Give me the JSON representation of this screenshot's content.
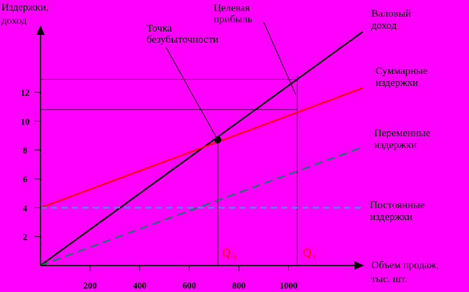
{
  "colors": {
    "background": "#ff00ff",
    "revenue": "#000000",
    "total_costs": "#ff0000",
    "variable_costs": "#008060",
    "fixed_costs": "#2aa4d8",
    "q_labels": "#ff0000"
  },
  "chart_data": {
    "type": "line",
    "title": "",
    "xlabel": [
      "Объем продаж,",
      "тыс. шт."
    ],
    "ylabel": [
      "Издержки,",
      "доход"
    ],
    "xlim": [
      0,
      1300
    ],
    "ylim": [
      0,
      16.7
    ],
    "x_ticks": [
      "200",
      "400",
      "600",
      "800",
      "1000"
    ],
    "x_tick_values": [
      200,
      400,
      600,
      800,
      1000
    ],
    "y_ticks": [
      "2",
      "4",
      "6",
      "8",
      "10",
      "12"
    ],
    "y_tick_values": [
      2,
      4,
      6,
      8,
      10,
      12
    ],
    "grid": false,
    "series": [
      {
        "name": [
          "Валовый",
          "доход"
        ],
        "style": "solid",
        "color_key": "revenue",
        "x": [
          0,
          1300
        ],
        "y": [
          0,
          16.2
        ]
      },
      {
        "name": [
          "Суммарные",
          "издержки"
        ],
        "style": "solid",
        "color_key": "total_costs",
        "x": [
          0,
          1300
        ],
        "y": [
          4,
          12.3
        ]
      },
      {
        "name": [
          "Переменные",
          "издержки"
        ],
        "style": "dashed",
        "color_key": "variable_costs",
        "x": [
          0,
          1300
        ],
        "y": [
          0,
          8.2
        ]
      },
      {
        "name": [
          "Постоянные",
          "издержки"
        ],
        "style": "dashed",
        "color_key": "fixed_costs",
        "x": [
          0,
          1300
        ],
        "y": [
          4,
          4
        ]
      }
    ],
    "annotations": {
      "break_even": {
        "label": [
          "Точка",
          "безубыточности"
        ],
        "x": 715,
        "y": 8.7,
        "q_label": "Q",
        "q_sub": "бу"
      },
      "target_profit": {
        "label": [
          "Целевая",
          "прибыль"
        ],
        "x": 1035,
        "y_total_costs": 10.8,
        "y_revenue": 12.9,
        "q_label": "Q",
        "q_sub": "ц"
      }
    }
  }
}
